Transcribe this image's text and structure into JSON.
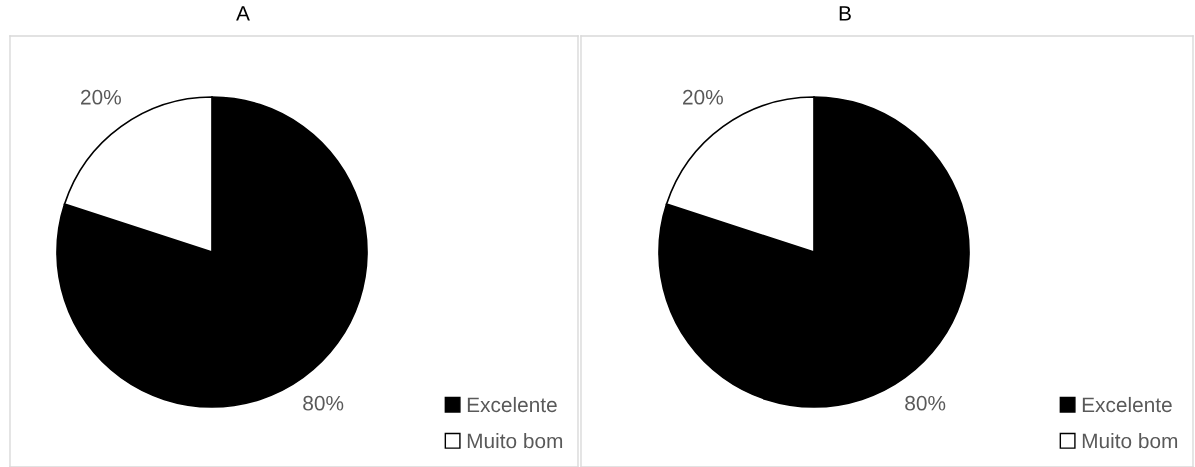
{
  "chart_data": [
    {
      "type": "pie",
      "title": "A",
      "categories": [
        "Excelente",
        "Muito bom"
      ],
      "values": [
        80,
        20
      ],
      "colors": [
        "#000000",
        "#ffffff"
      ],
      "value_labels": [
        "80%",
        "20%"
      ],
      "legend": "bottom right"
    },
    {
      "type": "pie",
      "title": "B",
      "categories": [
        "Excelente",
        "Muito bom"
      ],
      "values": [
        80,
        20
      ],
      "colors": [
        "#000000",
        "#ffffff"
      ],
      "value_labels": [
        "80%",
        "20%"
      ],
      "legend": "bottom right"
    }
  ]
}
